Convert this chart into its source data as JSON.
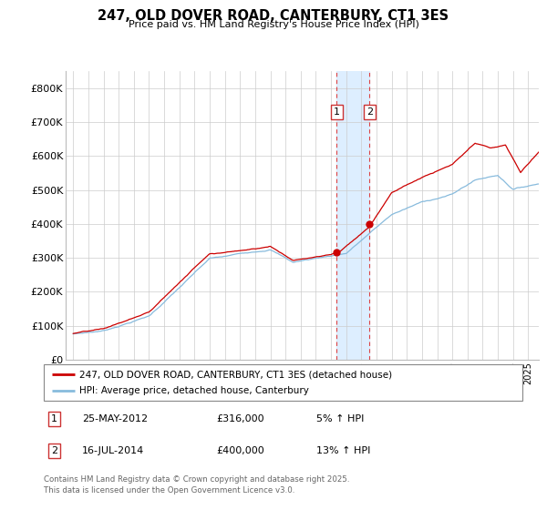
{
  "title": "247, OLD DOVER ROAD, CANTERBURY, CT1 3ES",
  "subtitle": "Price paid vs. HM Land Registry's House Price Index (HPI)",
  "legend_line1": "247, OLD DOVER ROAD, CANTERBURY, CT1 3ES (detached house)",
  "legend_line2": "HPI: Average price, detached house, Canterbury",
  "footer": "Contains HM Land Registry data © Crown copyright and database right 2025.\nThis data is licensed under the Open Government Licence v3.0.",
  "sale1_date": "25-MAY-2012",
  "sale1_price": "£316,000",
  "sale1_hpi": "5% ↑ HPI",
  "sale1_year": 2012.38,
  "sale1_value": 316000,
  "sale2_date": "16-JUL-2014",
  "sale2_price": "£400,000",
  "sale2_hpi": "13% ↑ HPI",
  "sale2_year": 2014.54,
  "sale2_value": 400000,
  "property_color": "#cc0000",
  "hpi_color": "#88bbdd",
  "shade_color": "#ddeeff",
  "dashed_line_color": "#dd4444",
  "ylim": [
    0,
    850000
  ],
  "yticks": [
    0,
    100000,
    200000,
    300000,
    400000,
    500000,
    600000,
    700000,
    800000
  ],
  "ytick_labels": [
    "£0",
    "£100K",
    "£200K",
    "£300K",
    "£400K",
    "£500K",
    "£600K",
    "£700K",
    "£800K"
  ],
  "xlim_start": 1994.5,
  "xlim_end": 2025.7
}
